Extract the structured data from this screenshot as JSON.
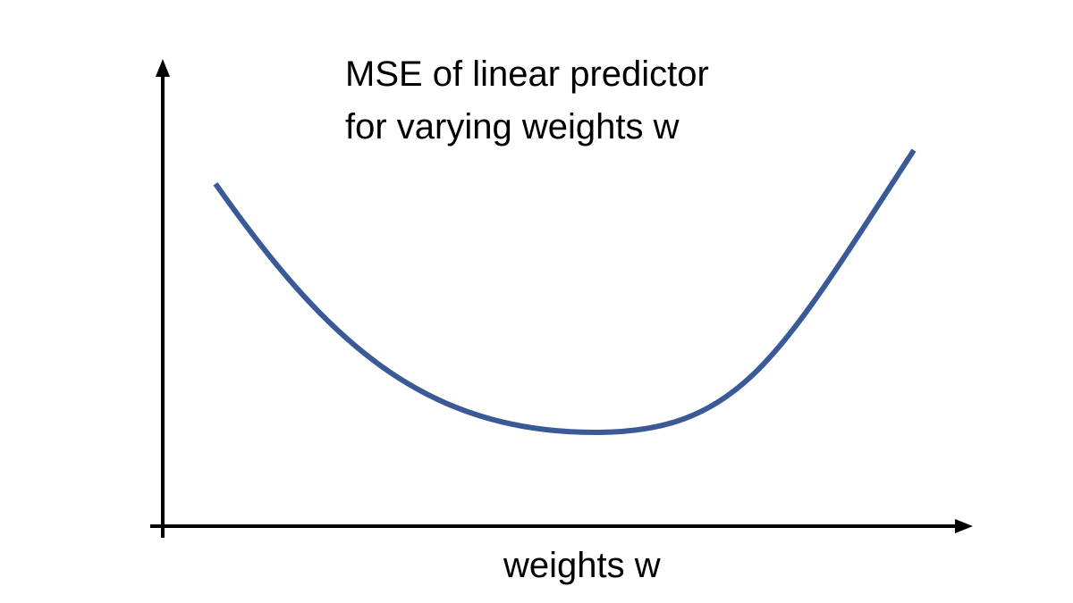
{
  "chart_data": {
    "type": "line",
    "title_lines": [
      "MSE of linear predictor",
      "for varying weights w"
    ],
    "xlabel": "weights w",
    "ylabel": "",
    "x_ticks_shown": false,
    "y_ticks_shown": false,
    "grid": false,
    "legend": "none",
    "curve_shape": "convex-u",
    "series": [
      {
        "color": "#3a5a97",
        "points_relative": [
          [
            0.0,
            0.74
          ],
          [
            0.55,
            0.0
          ],
          [
            1.0,
            0.84
          ]
        ]
      }
    ]
  }
}
